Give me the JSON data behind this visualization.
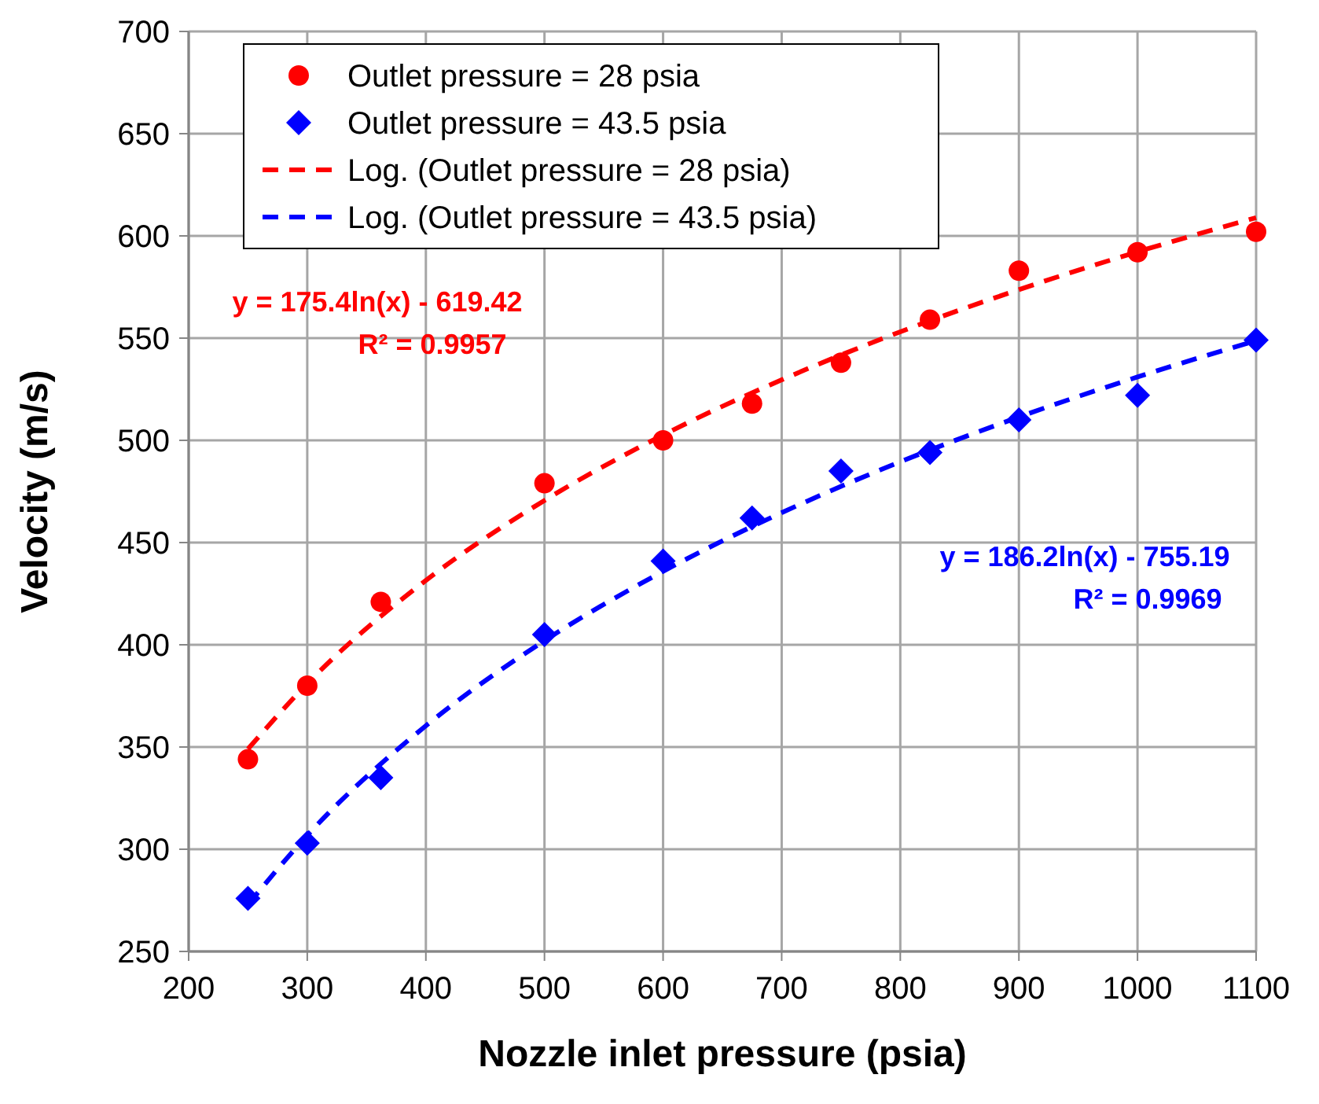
{
  "chart_data": {
    "type": "scatter",
    "xlabel": "Nozzle inlet pressure (psia)",
    "ylabel": "Velocity (m/s)",
    "xlim": [
      200,
      1100
    ],
    "xticks": [
      200,
      300,
      400,
      500,
      600,
      700,
      800,
      900,
      1000,
      1100
    ],
    "ylim": [
      250,
      700
    ],
    "yticks": [
      250,
      300,
      350,
      400,
      450,
      500,
      550,
      600,
      650,
      700
    ],
    "grid": true,
    "legend": "top left",
    "x": [
      250,
      300,
      362,
      500,
      600,
      675,
      750,
      825,
      900,
      1000,
      1100
    ],
    "series": [
      {
        "name": "Outlet pressure = 28 psia",
        "color": "#ff0000",
        "marker": "circle",
        "values": [
          344,
          380,
          421,
          479,
          500,
          518,
          538,
          559,
          583,
          592,
          602
        ]
      },
      {
        "name": "Outlet pressure = 43.5 psia",
        "color": "#0000ff",
        "marker": "diamond",
        "values": [
          276,
          303,
          335,
          405,
          441,
          462,
          485,
          494,
          510,
          522,
          549
        ]
      },
      {
        "name": "Log. (Outlet pressure = 28 psia)",
        "type": "line",
        "color": "#ff0000",
        "line_style": "dashed",
        "marker": "none",
        "x": [
          250,
          300,
          400,
          500,
          600,
          700,
          800,
          900,
          1000,
          1100
        ],
        "values": [
          349,
          381,
          431.5,
          470.6,
          502.6,
          529.6,
          553.1,
          573.7,
          592.2,
          608.9
        ]
      },
      {
        "name": "Log. (Outlet pressure = 43.5 psia)",
        "type": "line",
        "color": "#0000ff",
        "line_style": "dashed",
        "marker": "none",
        "x": [
          250,
          300,
          400,
          500,
          600,
          700,
          800,
          900,
          1000,
          1100
        ],
        "values": [
          272.9,
          306.8,
          360.4,
          402,
          435.9,
          464.6,
          489.5,
          511.4,
          531,
          548.8
        ]
      }
    ],
    "annotations": [
      "y = 175.4ln(x) - 619.42",
      "R² = 0.9957",
      "y = 186.2ln(x) - 755.19",
      "R² = 0.9969"
    ]
  }
}
